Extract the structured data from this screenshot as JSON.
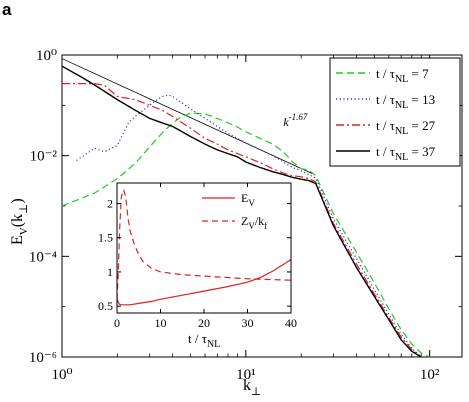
{
  "panel_label": "a",
  "chart_data": [
    {
      "type": "line",
      "xscale": "log",
      "yscale": "log",
      "xlim": [
        1,
        150
      ],
      "ylim": [
        1e-06,
        1
      ],
      "xticks": [
        1,
        10,
        100
      ],
      "xtick_labels": [
        "10⁰",
        "10¹",
        "10²"
      ],
      "yticks": [
        1e-06,
        0.0001,
        0.01,
        1
      ],
      "ytick_labels": [
        "10⁻⁶",
        "10⁻⁴",
        "10⁻²",
        "10⁰"
      ],
      "xlabel": {
        "main": "k",
        "sub": "⊥"
      },
      "ylabel": {
        "main": "E",
        "sub": "V",
        "rest": "(k",
        "rest_sub": "⊥",
        "close": ")"
      },
      "legend_position": "top-right",
      "annotation": {
        "text": "k",
        "sup": "-1.67",
        "x": 16,
        "y": 0.032
      },
      "reference_line": {
        "slope": -1.67,
        "x": [
          1,
          23
        ],
        "y": [
          0.85,
          0.0044
        ]
      },
      "series": [
        {
          "name_prefix": "t / τ",
          "name_sub": "NL",
          "name_suffix": " = 7",
          "color": "#22cc22",
          "dash": "7,4",
          "x": [
            1,
            1.5,
            2,
            2.5,
            3,
            3.5,
            4,
            4.5,
            5,
            6,
            7,
            8,
            9,
            10,
            12,
            14,
            16,
            18,
            20,
            22,
            24,
            30,
            40,
            50,
            60,
            70,
            80,
            90,
            100
          ],
          "y": [
            0.001,
            0.0018,
            0.0035,
            0.007,
            0.015,
            0.028,
            0.045,
            0.06,
            0.07,
            0.068,
            0.055,
            0.045,
            0.037,
            0.03,
            0.022,
            0.017,
            0.012,
            0.0075,
            0.0055,
            0.0052,
            0.004,
            0.0007,
            0.00012,
            3e-05,
            9e-06,
            3.5e-06,
            1.8e-06,
            1.2e-06,
            1e-06
          ]
        },
        {
          "name_prefix": "t / τ",
          "name_sub": "NL",
          "name_suffix": " = 13",
          "color": "#3333cc",
          "dash": "1.2,2.5",
          "x": [
            1.2,
            1.5,
            1.7,
            2,
            2.3,
            2.5,
            3,
            3.3,
            3.5,
            3.8,
            4,
            5,
            6,
            7,
            8,
            9,
            10,
            12,
            14,
            16,
            18,
            20,
            24,
            30,
            40,
            50,
            60,
            70,
            80,
            90
          ],
          "y": [
            0.008,
            0.014,
            0.012,
            0.016,
            0.045,
            0.06,
            0.1,
            0.13,
            0.15,
            0.16,
            0.15,
            0.085,
            0.055,
            0.038,
            0.028,
            0.022,
            0.018,
            0.013,
            0.01,
            0.0075,
            0.0058,
            0.005,
            0.0036,
            0.00055,
            9e-05,
            2.2e-05,
            7e-06,
            2.8e-06,
            1.5e-06,
            1e-06
          ]
        },
        {
          "name_prefix": "t / τ",
          "name_sub": "NL",
          "name_suffix": " = 27",
          "color": "#dd2222",
          "dash": "8,3,2,3",
          "x": [
            1,
            1.5,
            1.7,
            2,
            2.5,
            3,
            3.5,
            4,
            5,
            6,
            7,
            8,
            9,
            10,
            12,
            14,
            16,
            18,
            20,
            22,
            24,
            30,
            40,
            50,
            60,
            70,
            80,
            90
          ],
          "y": [
            0.27,
            0.27,
            0.25,
            0.15,
            0.13,
            0.1,
            0.08,
            0.06,
            0.035,
            0.022,
            0.017,
            0.013,
            0.011,
            0.0095,
            0.0072,
            0.0055,
            0.0045,
            0.004,
            0.0038,
            0.0035,
            0.003,
            0.00045,
            7e-05,
            1.8e-05,
            6e-06,
            2.5e-06,
            1.4e-06,
            1e-06
          ]
        },
        {
          "name_prefix": "t / τ",
          "name_sub": "NL",
          "name_suffix": " = 37",
          "color": "#000000",
          "dash": "",
          "x": [
            1,
            1.3,
            1.6,
            2,
            2.5,
            3,
            3.5,
            4,
            4.5,
            5,
            6,
            7,
            8,
            9,
            10,
            12,
            14,
            16,
            18,
            20,
            22,
            24,
            30,
            40,
            50,
            60,
            70,
            80,
            90
          ],
          "y": [
            0.6,
            0.35,
            0.22,
            0.13,
            0.08,
            0.055,
            0.045,
            0.038,
            0.03,
            0.024,
            0.017,
            0.013,
            0.011,
            0.0095,
            0.0075,
            0.0058,
            0.0048,
            0.0042,
            0.0037,
            0.0034,
            0.0032,
            0.0028,
            0.0004,
            6e-05,
            1.6e-05,
            5.5e-06,
            2.2e-06,
            1.3e-06,
            1e-06
          ]
        }
      ]
    },
    {
      "type": "line",
      "xlim": [
        0,
        40
      ],
      "ylim": [
        0.4,
        2.3
      ],
      "xticks": [
        0,
        10,
        20,
        30,
        40
      ],
      "yticks": [
        0.5,
        1,
        1.5,
        2
      ],
      "ytick_labels": [
        "0.5",
        "1",
        "1.5",
        "2"
      ],
      "xlabel": {
        "main": "t / τ",
        "sub": "NL"
      },
      "legend_position": "top-right",
      "series": [
        {
          "name_prefix": "E",
          "name_sub": "V",
          "name_suffix": "",
          "color": "#dd2222",
          "dash": "",
          "x": [
            0,
            0.5,
            1,
            2,
            3,
            5,
            8,
            10,
            15,
            20,
            25,
            30,
            33,
            36,
            38,
            40
          ],
          "y": [
            0.6,
            0.53,
            0.52,
            0.52,
            0.52,
            0.54,
            0.57,
            0.6,
            0.66,
            0.72,
            0.78,
            0.85,
            0.92,
            1.02,
            1.1,
            1.18
          ]
        },
        {
          "name_prefix": "Z",
          "name_sub": "V",
          "name_suffix": "/k",
          "name_sub2": "f",
          "color": "#dd2222",
          "dash": "6,4",
          "x": [
            0,
            0.3,
            0.6,
            1,
            1.5,
            2,
            2.5,
            3,
            4,
            5,
            6,
            8,
            10,
            15,
            20,
            25,
            30,
            35,
            40
          ],
          "y": [
            0.6,
            1.0,
            1.6,
            2.1,
            2.2,
            2.1,
            1.8,
            1.6,
            1.4,
            1.25,
            1.15,
            1.05,
            1.0,
            0.96,
            0.94,
            0.92,
            0.9,
            0.89,
            0.88
          ]
        }
      ]
    }
  ]
}
